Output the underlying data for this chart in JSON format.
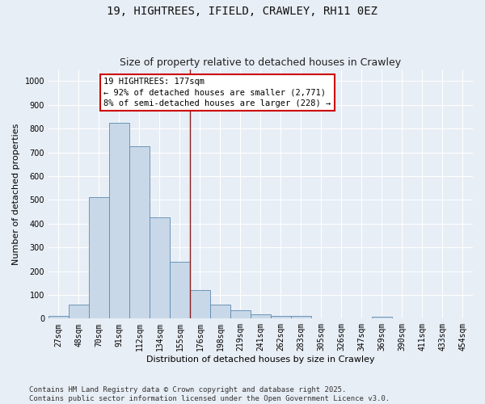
{
  "title": "19, HIGHTREES, IFIELD, CRAWLEY, RH11 0EZ",
  "subtitle": "Size of property relative to detached houses in Crawley",
  "xlabel": "Distribution of detached houses by size in Crawley",
  "ylabel": "Number of detached properties",
  "categories": [
    "27sqm",
    "48sqm",
    "70sqm",
    "91sqm",
    "112sqm",
    "134sqm",
    "155sqm",
    "176sqm",
    "198sqm",
    "219sqm",
    "241sqm",
    "262sqm",
    "283sqm",
    "305sqm",
    "326sqm",
    "347sqm",
    "369sqm",
    "390sqm",
    "411sqm",
    "433sqm",
    "454sqm"
  ],
  "values": [
    10,
    60,
    510,
    825,
    725,
    425,
    240,
    120,
    58,
    35,
    17,
    13,
    10,
    0,
    0,
    0,
    8,
    0,
    0,
    0,
    0
  ],
  "bar_color": "#c8d8e8",
  "bar_edge_color": "#5a8ab0",
  "highlight_idx": 6.5,
  "highlight_color": "#8b2020",
  "annotation_text": "19 HIGHTREES: 177sqm\n← 92% of detached houses are smaller (2,771)\n8% of semi-detached houses are larger (228) →",
  "annotation_box_color": "#ffffff",
  "annotation_box_edge": "#cc0000",
  "ylim": [
    0,
    1050
  ],
  "yticks": [
    0,
    100,
    200,
    300,
    400,
    500,
    600,
    700,
    800,
    900,
    1000
  ],
  "bg_color": "#e8eef5",
  "grid_color": "#ffffff",
  "footer": "Contains HM Land Registry data © Crown copyright and database right 2025.\nContains public sector information licensed under the Open Government Licence v3.0.",
  "title_fontsize": 10,
  "subtitle_fontsize": 9,
  "axis_label_fontsize": 8,
  "tick_fontsize": 7,
  "annotation_fontsize": 7.5,
  "footer_fontsize": 6.5
}
